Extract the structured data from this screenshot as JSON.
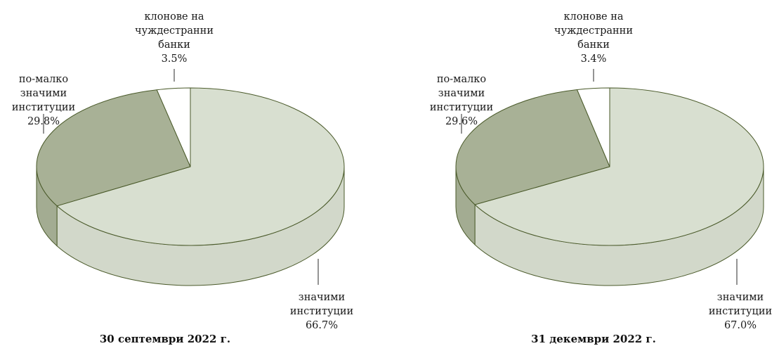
{
  "chart_data": [
    {
      "type": "pie",
      "title": "30 септември 2022 г.",
      "slices": [
        {
          "name": "значими институции",
          "value": 66.7,
          "label": "66.7%",
          "color": "#d8dfd0"
        },
        {
          "name": "по-малко значими институции",
          "value": 29.8,
          "label": "29.8%",
          "color": "#a8b196"
        },
        {
          "name": "клонове на чуждестранни банки",
          "value": 3.5,
          "label": "3.5%",
          "color": "#ffffff"
        }
      ]
    },
    {
      "type": "pie",
      "title": "31 декември 2022 г.",
      "slices": [
        {
          "name": "значими институции",
          "value": 67.0,
          "label": "67.0%",
          "color": "#d8dfd0"
        },
        {
          "name": "по-малко значими институции",
          "value": 29.6,
          "label": "29.6%",
          "color": "#a8b196"
        },
        {
          "name": "клонове на чуждестранни банки",
          "value": 3.4,
          "label": "3.4%",
          "color": "#ffffff"
        }
      ]
    }
  ],
  "label_lines": {
    "significant": [
      "значими",
      "институции"
    ],
    "less_significant": [
      "по-малко",
      "значими",
      "институции"
    ],
    "branches": [
      "клонове на",
      "чуждестранни",
      "банки"
    ]
  }
}
